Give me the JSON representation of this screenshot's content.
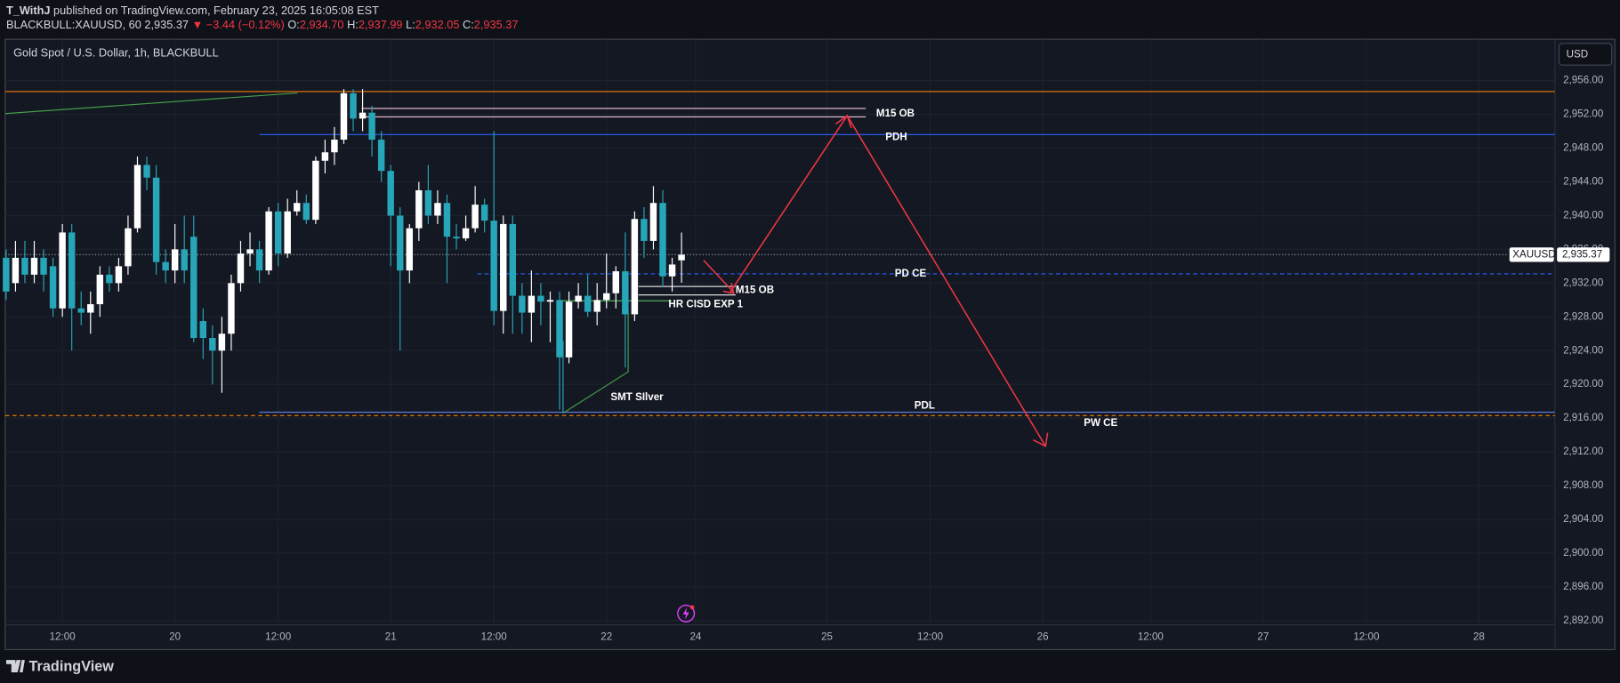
{
  "header": {
    "author": "T_WithJ",
    "published": "published on TradingView.com, February 23, 2025 16:05:08 EST",
    "symbol": "BLACKBULL:XAUUSD, 60",
    "last": "2,935.37",
    "change": "▼ −3.44 (−0.12%)",
    "ohlc": [
      {
        "label": "O:",
        "value": "2,934.70"
      },
      {
        "label": "H:",
        "value": "2,937.99"
      },
      {
        "label": "L:",
        "value": "2,932.05"
      },
      {
        "label": "C:",
        "value": "2,935.37"
      }
    ]
  },
  "chart_data": {
    "type": "candlestick",
    "title": "Gold Spot / U.S. Dollar, 1h, BLACKBULL",
    "currency": "USD",
    "up_color": "#ffffff",
    "down_color": "#26a6b8",
    "grid": true,
    "x": [
      0,
      1,
      2,
      3,
      4,
      5,
      6,
      7,
      8,
      9,
      10,
      11,
      12,
      13,
      14,
      15,
      16,
      17,
      18,
      19,
      20,
      21,
      22,
      23,
      24,
      25,
      26,
      27,
      28,
      29,
      30,
      31,
      32,
      33,
      34,
      35,
      36,
      37,
      38,
      39,
      40,
      41,
      42,
      43,
      44,
      45,
      46,
      47,
      48,
      49,
      50,
      51,
      52,
      53,
      54,
      55,
      56,
      57,
      58,
      59,
      60,
      61,
      62,
      63,
      64,
      65,
      66,
      67,
      68,
      69,
      70,
      71,
      72
    ],
    "open": [
      2935,
      2932,
      2935,
      2933,
      2935,
      2934,
      2929,
      2938,
      2929,
      2928.5,
      2929.5,
      2933,
      2932,
      2934,
      2938.5,
      2946,
      2944.5,
      2934.5,
      2933.5,
      2936,
      2937.5,
      2927.5,
      2925.5,
      2924,
      2926,
      2932,
      2935.5,
      2936,
      2933.5,
      2940.5,
      2935.5,
      2940.5,
      2941.5,
      2939.5,
      2946.5,
      2947.5,
      2949,
      2954.5,
      2951.5,
      2952.2,
      2949,
      2945.3,
      2940,
      2933.5,
      2938.5,
      2943,
      2940,
      2941.5,
      2937.5,
      2937.3,
      2938.5,
      2941.3,
      2939.4,
      2928.7,
      2939,
      2930.5,
      2928.5,
      2930.5,
      2929.8,
      2930,
      2923.2,
      2929.8,
      2930.5,
      2928.6,
      2930,
      2930.8,
      2933.4,
      2928.3,
      2939.6,
      2937,
      2941.5,
      2932.8,
      2934.7
    ],
    "high": [
      2936,
      2937,
      2937,
      2937,
      2936,
      2935,
      2939,
      2939,
      2931,
      2931,
      2934,
      2934,
      2935,
      2940,
      2947,
      2947,
      2946,
      2936,
      2939,
      2940,
      2940,
      2929,
      2927,
      2928,
      2933,
      2937,
      2938,
      2937,
      2941,
      2941.5,
      2942,
      2943,
      2942.5,
      2947,
      2949,
      2950.5,
      2955,
      2955,
      2955,
      2953,
      2950,
      2946,
      2941,
      2939,
      2944,
      2946,
      2943,
      2942.5,
      2939,
      2940,
      2943.5,
      2942,
      2950,
      2940,
      2940,
      2932,
      2933.5,
      2932,
      2931,
      2931,
      2931,
      2932,
      2933,
      2932,
      2935.5,
      2934,
      2938,
      2940.5,
      2941,
      2943.5,
      2943,
      2935,
      2937.99
    ],
    "low": [
      2930,
      2931,
      2932,
      2932,
      2931,
      2928,
      2928,
      2924,
      2927,
      2926,
      2928,
      2931,
      2931,
      2933,
      2938,
      2943,
      2933,
      2932,
      2932,
      2932,
      2925,
      2923,
      2920,
      2919,
      2924,
      2931,
      2934,
      2932,
      2933,
      2934,
      2935,
      2940,
      2939,
      2939,
      2945,
      2946,
      2948.5,
      2950,
      2950,
      2947,
      2944,
      2934,
      2924,
      2932,
      2937,
      2939,
      2939,
      2932,
      2936,
      2937,
      2938,
      2938,
      2927,
      2926,
      2926,
      2926,
      2925,
      2927,
      2925,
      2917,
      2922.5,
      2929,
      2928,
      2927,
      2929,
      2929,
      2922,
      2927.5,
      2935,
      2936,
      2931.5,
      2931,
      2932.05
    ],
    "close": [
      2931,
      2935,
      2933,
      2935,
      2933,
      2929,
      2938,
      2929,
      2928.5,
      2929.5,
      2933,
      2932,
      2934,
      2938.5,
      2946,
      2944.5,
      2934.5,
      2933.5,
      2936,
      2933.5,
      2925.5,
      2925.5,
      2924,
      2926,
      2932,
      2935.5,
      2936,
      2933.5,
      2940.5,
      2935.5,
      2940.5,
      2941.5,
      2939.5,
      2946.5,
      2947.5,
      2949,
      2954.5,
      2951.5,
      2952.2,
      2949,
      2945.3,
      2940,
      2933.5,
      2938.5,
      2943,
      2940,
      2941.5,
      2937.5,
      2937.3,
      2938.5,
      2941.3,
      2939.4,
      2928.7,
      2939,
      2930.5,
      2928.5,
      2930.5,
      2929.8,
      2930,
      2923.2,
      2929.8,
      2930.5,
      2928.6,
      2930,
      2930.8,
      2933.4,
      2928.3,
      2939.6,
      2937,
      2941.5,
      2932.8,
      2934.2,
      2935.37
    ],
    "xlim": [
      -0.1,
      165.1
    ],
    "xticks": [
      {
        "value": 6,
        "label": "12:00"
      },
      {
        "value": 18,
        "label": "20"
      },
      {
        "value": 29,
        "label": "12:00"
      },
      {
        "value": 41,
        "label": "21"
      },
      {
        "value": 52,
        "label": "12:00"
      },
      {
        "value": 64,
        "label": "22"
      },
      {
        "value": 73.5,
        "label": "24"
      },
      {
        "value": 87.5,
        "label": "25"
      },
      {
        "value": 98.5,
        "label": "12:00"
      },
      {
        "value": 110.5,
        "label": "26"
      },
      {
        "value": 122,
        "label": "12:00"
      },
      {
        "value": 134,
        "label": "27"
      },
      {
        "value": 145,
        "label": "12:00"
      },
      {
        "value": 157,
        "label": "28"
      }
    ],
    "ylim": [
      2891.5,
      2960.9
    ],
    "yticks": [
      {
        "value": 2956,
        "label": "2,956.00"
      },
      {
        "value": 2952,
        "label": "2,952.00"
      },
      {
        "value": 2948,
        "label": "2,948.00"
      },
      {
        "value": 2944,
        "label": "2,944.00"
      },
      {
        "value": 2940,
        "label": "2,940.00"
      },
      {
        "value": 2936,
        "label": "2,936.00"
      },
      {
        "value": 2932,
        "label": "2,932.00"
      },
      {
        "value": 2928,
        "label": "2,928.00"
      },
      {
        "value": 2924,
        "label": "2,924.00"
      },
      {
        "value": 2920,
        "label": "2,920.00"
      },
      {
        "value": 2916,
        "label": "2,916.00"
      },
      {
        "value": 2912,
        "label": "2,912.00"
      },
      {
        "value": 2908,
        "label": "2,908.00"
      },
      {
        "value": 2904,
        "label": "2,904.00"
      },
      {
        "value": 2900,
        "label": "2,900.00"
      },
      {
        "value": 2896,
        "label": "2,896.00"
      },
      {
        "value": 2892,
        "label": "2,892.00"
      }
    ],
    "symbol_label": "XAUUSD",
    "last_price": {
      "value": 2935.37,
      "label": "2,935.37"
    },
    "levels": [
      {
        "price": 2954.7,
        "color": "#f57c00",
        "style": "solid"
      },
      {
        "label": "M15 OB",
        "price": 2952.7,
        "color": "#f3c6d6",
        "style": "solid"
      },
      {
        "price": 2951.7,
        "color": "#f3c6d6",
        "style": "solid"
      },
      {
        "label": "PDH",
        "price": 2949.6,
        "color": "#2962ff",
        "style": "solid"
      },
      {
        "label": "PD CE",
        "price": 2933.1,
        "color": "#2962ff",
        "style": "dashed"
      },
      {
        "label": "PDL",
        "price": 2916.7,
        "color": "#5b7bd5",
        "style": "solid"
      },
      {
        "price": 2916.3,
        "color": "#f57c00",
        "style": "dashed"
      },
      {
        "label": "M15 OB",
        "price": 2931.6,
        "color": "#d9d9d9",
        "style": "solid"
      },
      {
        "price": 2930.6,
        "color": "#d9d9d9",
        "style": "solid"
      },
      {
        "label": "HR CISD EXP 1",
        "price": 2929.9,
        "color": "#4caf50",
        "style": "solid"
      }
    ],
    "annotations": [
      {
        "label": "SMT SIlver"
      },
      {
        "label": "PW CE"
      }
    ]
  },
  "footer": {
    "brand": "TradingView"
  }
}
